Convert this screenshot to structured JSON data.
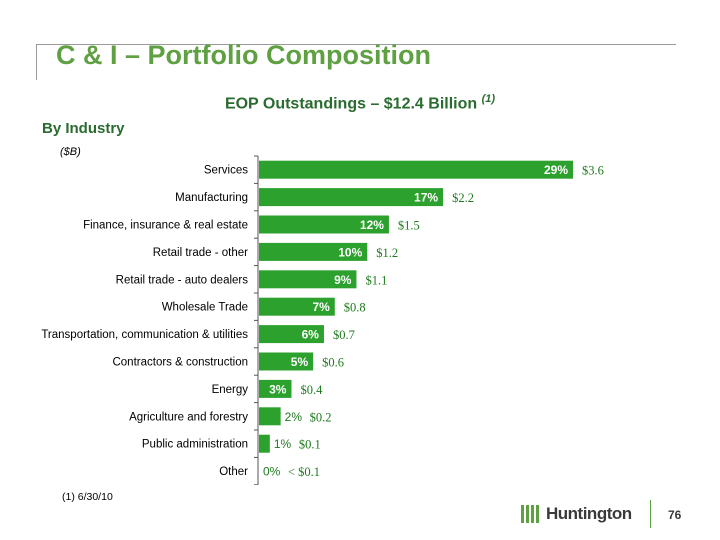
{
  "slide": {
    "title": "C & I – Portfolio Composition",
    "subtitle": "EOP Outstandings – $12.4 Billion",
    "subtitle_note": "(1)",
    "section_label": "By Industry",
    "unit_label": "($B)",
    "footnote": "(1)  6/30/10",
    "logo_text": "Huntington",
    "page_number": "76"
  },
  "colors": {
    "bar": "#2da12d",
    "title": "#5fa042",
    "heading": "#2a6b2f",
    "value_label": "#1e7a1e"
  },
  "chart_data": {
    "type": "bar",
    "orientation": "horizontal",
    "title": "EOP Outstandings – $12.4 Billion",
    "categories": [
      "Services",
      "Manufacturing",
      "Finance, insurance & real estate",
      "Retail trade - other",
      "Retail trade - auto dealers",
      "Wholesale Trade",
      "Transportation, communication & utilities",
      "Contractors & construction",
      "Energy",
      "Agriculture and forestry",
      "Public administration",
      "Other"
    ],
    "values": [
      29,
      17,
      12,
      10,
      9,
      7,
      6,
      5,
      3,
      2,
      1,
      0
    ],
    "percent_labels": [
      "29%",
      "17%",
      "12%",
      "10%",
      "9%",
      "7%",
      "6%",
      "5%",
      "3%",
      "2%",
      "1%",
      "0%"
    ],
    "amount_labels": [
      "$3.6",
      "$2.2",
      "$1.5",
      "$1.2",
      "$1.1",
      "$0.8",
      "$0.7",
      "$0.6",
      "$0.4",
      "$0.2",
      "$0.1",
      "< $0.1"
    ],
    "xlim": [
      0,
      29
    ],
    "grid": false,
    "legend": "none"
  }
}
